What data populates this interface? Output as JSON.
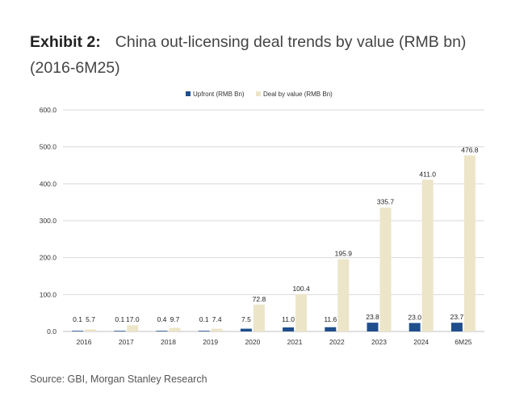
{
  "header": {
    "exhibit_label": "Exhibit 2:",
    "title_line1": "China out-licensing deal trends by value (RMB bn)",
    "title_line2": "(2016-6M25)"
  },
  "footer": {
    "source": "Source: GBI, Morgan Stanley Research"
  },
  "colors": {
    "upfront": "#1f4e8c",
    "deal": "#ece5c8",
    "grid": "#d9d9d9",
    "axis_text": "#333333"
  },
  "chart_data": {
    "type": "bar",
    "categories": [
      "2016",
      "2017",
      "2018",
      "2019",
      "2020",
      "2021",
      "2022",
      "2023",
      "2024",
      "6M25"
    ],
    "series": [
      {
        "name": "Upfront (RMB Bn)",
        "values": [
          0.1,
          0.1,
          0.4,
          0.1,
          7.5,
          11.0,
          11.6,
          23.8,
          23.0,
          23.7
        ],
        "labels": [
          "0.1",
          "0.1",
          "0.4",
          "0.1",
          "7.5",
          "11.0",
          "11.6",
          "23.8",
          "23.0",
          "23.7"
        ]
      },
      {
        "name": "Deal by value (RMB Bn)",
        "values": [
          5.7,
          17.0,
          9.7,
          7.4,
          72.8,
          100.4,
          195.9,
          335.7,
          411.0,
          476.8
        ],
        "labels": [
          "5.7",
          "17.0",
          "9.7",
          "7.4",
          "72.8",
          "100.4",
          "195.9",
          "335.7",
          "411.0",
          "476.8"
        ]
      }
    ],
    "yticks": [
      "0.0",
      "100.0",
      "200.0",
      "300.0",
      "400.0",
      "500.0",
      "600.0"
    ],
    "ylim": [
      0,
      600
    ],
    "legend_position": "top-center",
    "grid": true
  }
}
